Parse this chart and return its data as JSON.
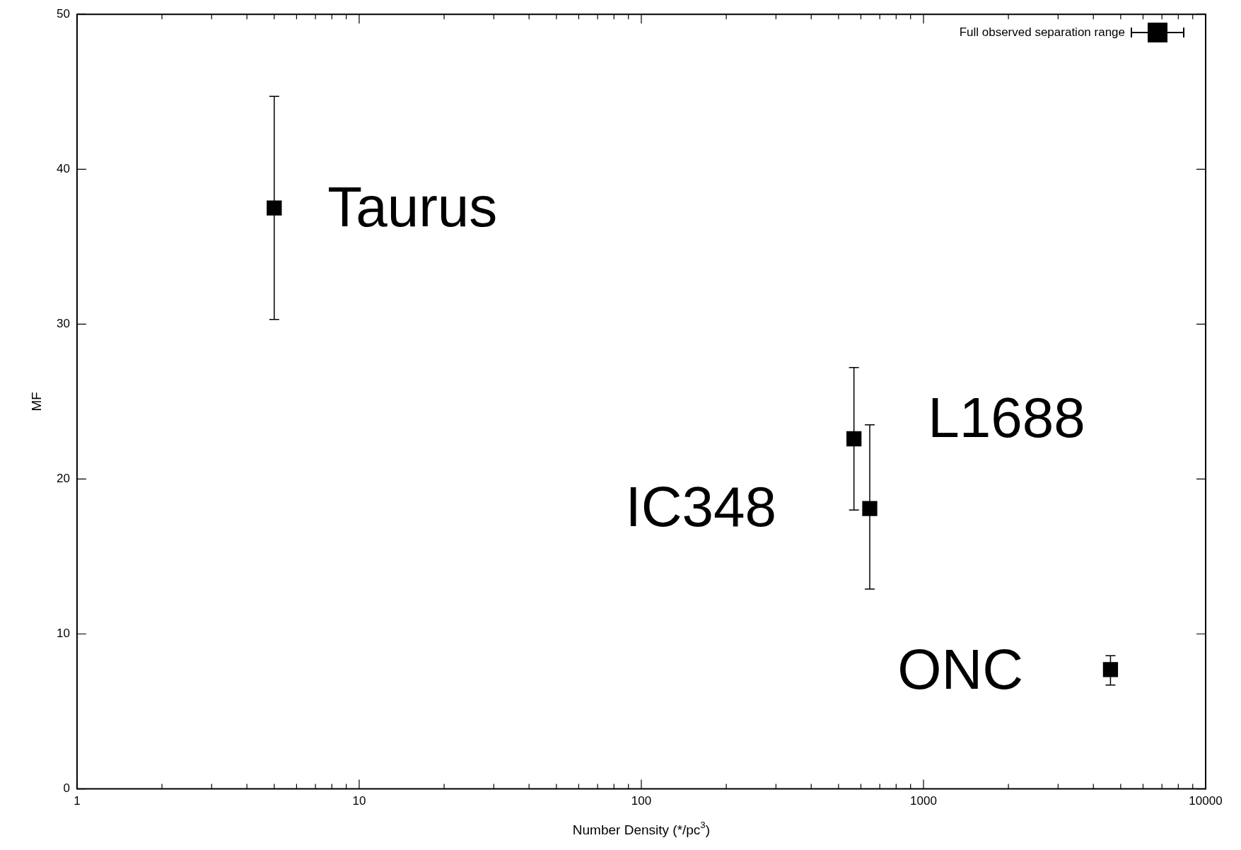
{
  "chart_data": {
    "type": "scatter",
    "xlabel": "Number Density (*/pc$^{3}$)",
    "ylabel": "MF",
    "x": [
      5,
      567,
      645,
      4600
    ],
    "series": [
      {
        "name": "Full observed separation range",
        "color": "#000000",
        "values": [
          37.5,
          22.6,
          18.1,
          7.7
        ],
        "errors": [
          [
            30.3,
            44.7
          ],
          [
            18.0,
            27.2
          ],
          [
            12.9,
            23.5
          ],
          [
            6.7,
            8.6
          ]
        ]
      }
    ],
    "marker": "square",
    "log": "x",
    "legend": "top right",
    "xlim": [
      1,
      10000
    ],
    "xticks": [
      1,
      {
        "value": 2,
        "label": null
      },
      {
        "value": 3,
        "label": null
      },
      {
        "value": 4,
        "label": null
      },
      {
        "value": 5,
        "label": null
      },
      {
        "value": 6,
        "label": null
      },
      {
        "value": 7,
        "label": null
      },
      {
        "value": 8,
        "label": null
      },
      {
        "value": 9,
        "label": null
      },
      10,
      {
        "value": 20,
        "label": null
      },
      {
        "value": 30,
        "label": null
      },
      {
        "value": 40,
        "label": null
      },
      {
        "value": 50,
        "label": null
      },
      {
        "value": 60,
        "label": null
      },
      {
        "value": 70,
        "label": null
      },
      {
        "value": 80,
        "label": null
      },
      {
        "value": 90,
        "label": null
      },
      100,
      {
        "value": 200,
        "label": null
      },
      {
        "value": 300,
        "label": null
      },
      {
        "value": 400,
        "label": null
      },
      {
        "value": 500,
        "label": null
      },
      {
        "value": 600,
        "label": null
      },
      {
        "value": 700,
        "label": null
      },
      {
        "value": 800,
        "label": null
      },
      {
        "value": 900,
        "label": null
      },
      1000,
      {
        "value": 2000,
        "label": null
      },
      {
        "value": 3000,
        "label": null
      },
      {
        "value": 4000,
        "label": null
      },
      {
        "value": 5000,
        "label": null
      },
      {
        "value": 6000,
        "label": null
      },
      {
        "value": 7000,
        "label": null
      },
      {
        "value": 8000,
        "label": null
      },
      {
        "value": 9000,
        "label": null
      },
      10000
    ],
    "ylim": [
      0,
      50
    ],
    "yticks": [
      0,
      10,
      20,
      30,
      40,
      50
    ],
    "annotations": [
      "Taurus",
      "L1688",
      "IC348",
      "ONC"
    ]
  }
}
